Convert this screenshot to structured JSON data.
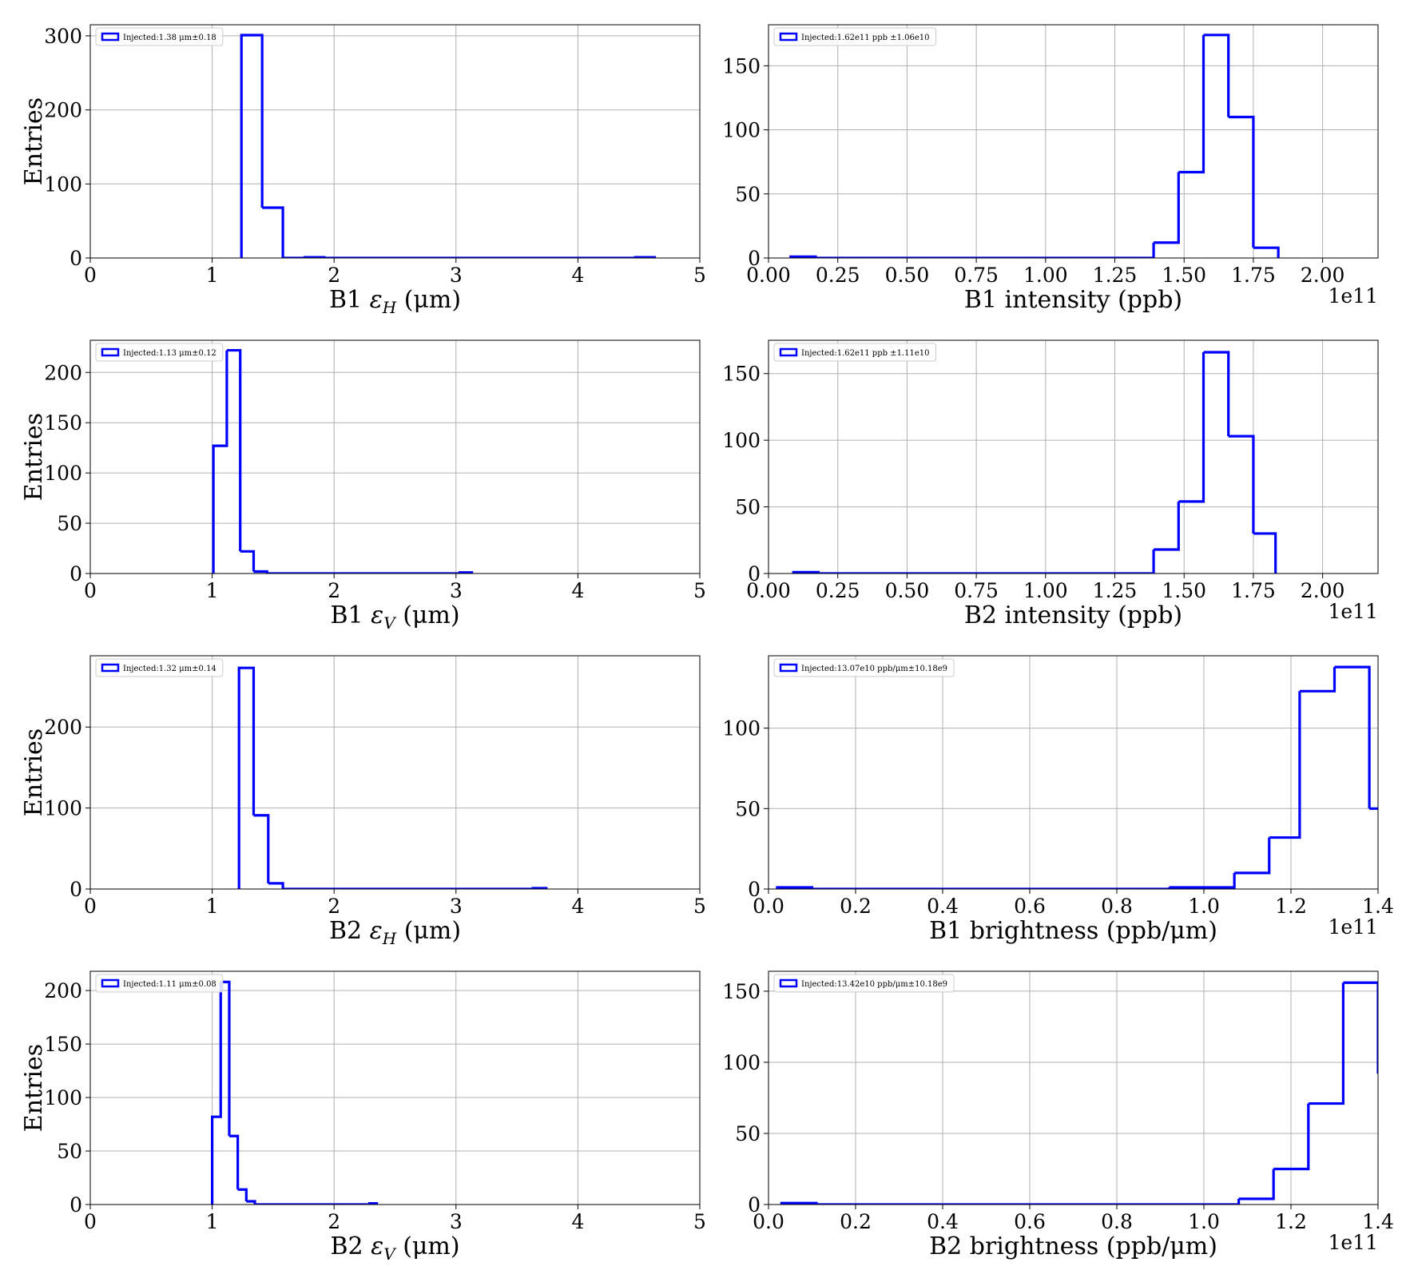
{
  "chart_data": [
    {
      "type": "histogram",
      "xlabel": "B1 εH (μm)",
      "xlabel_parts": {
        "pre": "B1 ",
        "sym": "ε",
        "sub": "H",
        "post": " (μm)"
      },
      "ylabel": "Entries",
      "xlim": [
        0,
        5
      ],
      "ylim": [
        0,
        315
      ],
      "xticks": [
        0,
        1,
        2,
        3,
        4,
        5
      ],
      "xtick_labels": [
        "0",
        "1",
        "2",
        "3",
        "4",
        "5"
      ],
      "yticks": [
        0,
        100,
        200,
        300
      ],
      "ytick_labels": [
        "0",
        "100",
        "200",
        "300"
      ],
      "offset_text": "",
      "legend": "Injected:1.38 μm±0.18",
      "legend_position": "upper left",
      "grid": true,
      "series_color": "#0000ff",
      "bins": [
        [
          1.24,
          1.41,
          301
        ],
        [
          1.41,
          1.58,
          68
        ],
        [
          1.58,
          1.75,
          0
        ],
        [
          1.75,
          1.92,
          1
        ],
        [
          1.92,
          4.46,
          0
        ],
        [
          4.46,
          4.63,
          1
        ]
      ]
    },
    {
      "type": "histogram",
      "xlabel": "B1 intensity (ppb)",
      "ylabel": "",
      "xlim": [
        0,
        2.2
      ],
      "ylim": [
        0,
        182
      ],
      "xticks": [
        0,
        0.25,
        0.5,
        0.75,
        1.0,
        1.25,
        1.5,
        1.75,
        2.0
      ],
      "xtick_labels": [
        "0.00",
        "0.25",
        "0.50",
        "0.75",
        "1.00",
        "1.25",
        "1.50",
        "1.75",
        "2.00"
      ],
      "yticks": [
        0,
        50,
        100,
        150
      ],
      "ytick_labels": [
        "0",
        "50",
        "100",
        "150"
      ],
      "offset_text": "1e11",
      "legend": "Injected:1.62e11 ppb ±1.06e10",
      "legend_position": "upper left",
      "grid": true,
      "series_color": "#0000ff",
      "bins": [
        [
          0.08,
          0.17,
          1
        ],
        [
          0.17,
          1.39,
          0
        ],
        [
          1.39,
          1.48,
          12
        ],
        [
          1.48,
          1.57,
          67
        ],
        [
          1.57,
          1.66,
          174
        ],
        [
          1.66,
          1.75,
          110
        ],
        [
          1.75,
          1.84,
          8
        ]
      ]
    },
    {
      "type": "histogram",
      "xlabel": "B1 εV (μm)",
      "xlabel_parts": {
        "pre": "B1 ",
        "sym": "ε",
        "sub": "V",
        "post": " (μm)"
      },
      "ylabel": "Entries",
      "xlim": [
        0,
        5
      ],
      "ylim": [
        0,
        232
      ],
      "xticks": [
        0,
        1,
        2,
        3,
        4,
        5
      ],
      "xtick_labels": [
        "0",
        "1",
        "2",
        "3",
        "4",
        "5"
      ],
      "yticks": [
        0,
        50,
        100,
        150,
        200
      ],
      "ytick_labels": [
        "0",
        "50",
        "100",
        "150",
        "200"
      ],
      "offset_text": "",
      "legend": "Injected:1.13 μm±0.12",
      "legend_position": "upper left",
      "grid": true,
      "series_color": "#0000ff",
      "bins": [
        [
          1.01,
          1.12,
          127
        ],
        [
          1.12,
          1.23,
          222
        ],
        [
          1.23,
          1.34,
          22
        ],
        [
          1.34,
          1.45,
          2
        ],
        [
          1.45,
          3.02,
          0
        ],
        [
          3.02,
          3.13,
          1
        ]
      ]
    },
    {
      "type": "histogram",
      "xlabel": "B2 intensity (ppb)",
      "ylabel": "",
      "xlim": [
        0,
        2.2
      ],
      "ylim": [
        0,
        175
      ],
      "xticks": [
        0,
        0.25,
        0.5,
        0.75,
        1.0,
        1.25,
        1.5,
        1.75,
        2.0
      ],
      "xtick_labels": [
        "0.00",
        "0.25",
        "0.50",
        "0.75",
        "1.00",
        "1.25",
        "1.50",
        "1.75",
        "2.00"
      ],
      "yticks": [
        0,
        50,
        100,
        150
      ],
      "ytick_labels": [
        "0",
        "50",
        "100",
        "150"
      ],
      "offset_text": "1e11",
      "legend": "Injected:1.62e11 ppb ±1.11e10",
      "legend_position": "upper left",
      "grid": true,
      "series_color": "#0000ff",
      "bins": [
        [
          0.09,
          0.18,
          1
        ],
        [
          0.18,
          1.39,
          0
        ],
        [
          1.39,
          1.48,
          18
        ],
        [
          1.48,
          1.57,
          54
        ],
        [
          1.57,
          1.66,
          166
        ],
        [
          1.66,
          1.75,
          103
        ],
        [
          1.75,
          1.83,
          30
        ]
      ]
    },
    {
      "type": "histogram",
      "xlabel": "B2 εH (μm)",
      "xlabel_parts": {
        "pre": "B2 ",
        "sym": "ε",
        "sub": "H",
        "post": " (μm)"
      },
      "ylabel": "Entries",
      "xlim": [
        0,
        5
      ],
      "ylim": [
        0,
        288
      ],
      "xticks": [
        0,
        1,
        2,
        3,
        4,
        5
      ],
      "xtick_labels": [
        "0",
        "1",
        "2",
        "3",
        "4",
        "5"
      ],
      "yticks": [
        0,
        100,
        200
      ],
      "ytick_labels": [
        "0",
        "100",
        "200"
      ],
      "offset_text": "",
      "legend": "Injected:1.32 μm±0.14",
      "legend_position": "upper left",
      "grid": true,
      "series_color": "#0000ff",
      "bins": [
        [
          1.22,
          1.34,
          273
        ],
        [
          1.34,
          1.46,
          91
        ],
        [
          1.46,
          1.58,
          7
        ],
        [
          1.58,
          3.62,
          0
        ],
        [
          3.62,
          3.74,
          1
        ]
      ]
    },
    {
      "type": "histogram",
      "xlabel": "B1 brightness (ppb/μm)",
      "ylabel": "",
      "xlim": [
        0,
        1.4
      ],
      "ylim": [
        0,
        145
      ],
      "xticks": [
        0,
        0.2,
        0.4,
        0.6,
        0.8,
        1.0,
        1.2,
        1.4
      ],
      "xtick_labels": [
        "0.0",
        "0.2",
        "0.4",
        "0.6",
        "0.8",
        "1.0",
        "1.2",
        "1.4"
      ],
      "yticks": [
        0,
        50,
        100
      ],
      "ytick_labels": [
        "0",
        "50",
        "100"
      ],
      "offset_text": "1e11",
      "legend": "Injected:13.07e10 ppb/μm±10.18e9",
      "legend_position": "upper left",
      "grid": true,
      "series_color": "#0000ff",
      "bins": [
        [
          0.02,
          0.1,
          1
        ],
        [
          0.1,
          0.92,
          0
        ],
        [
          0.92,
          1.07,
          1
        ],
        [
          1.07,
          1.15,
          10
        ],
        [
          1.15,
          1.22,
          32
        ],
        [
          1.22,
          1.3,
          123
        ],
        [
          1.3,
          1.38,
          138
        ],
        [
          1.38,
          1.46,
          50
        ]
      ]
    },
    {
      "type": "histogram",
      "xlabel": "B2 εV (μm)",
      "xlabel_parts": {
        "pre": "B2 ",
        "sym": "ε",
        "sub": "V",
        "post": " (μm)"
      },
      "ylabel": "Entries",
      "xlim": [
        0,
        5
      ],
      "ylim": [
        0,
        218
      ],
      "xticks": [
        0,
        1,
        2,
        3,
        4,
        5
      ],
      "xtick_labels": [
        "0",
        "1",
        "2",
        "3",
        "4",
        "5"
      ],
      "yticks": [
        0,
        50,
        100,
        150,
        200
      ],
      "ytick_labels": [
        "0",
        "50",
        "100",
        "150",
        "200"
      ],
      "offset_text": "",
      "legend": "Injected:1.11 μm±0.08",
      "legend_position": "upper left",
      "grid": true,
      "series_color": "#0000ff",
      "bins": [
        [
          1.0,
          1.07,
          82
        ],
        [
          1.07,
          1.14,
          208
        ],
        [
          1.14,
          1.21,
          64
        ],
        [
          1.21,
          1.28,
          14
        ],
        [
          1.28,
          1.35,
          3
        ],
        [
          1.35,
          2.28,
          0
        ],
        [
          2.28,
          2.35,
          1
        ]
      ]
    },
    {
      "type": "histogram",
      "xlabel": "B2 brightness (ppb/μm)",
      "ylabel": "",
      "xlim": [
        0,
        1.4
      ],
      "ylim": [
        0,
        164
      ],
      "xticks": [
        0,
        0.2,
        0.4,
        0.6,
        0.8,
        1.0,
        1.2,
        1.4
      ],
      "xtick_labels": [
        "0.0",
        "0.2",
        "0.4",
        "0.6",
        "0.8",
        "1.0",
        "1.2",
        "1.4"
      ],
      "yticks": [
        0,
        50,
        100,
        150
      ],
      "ytick_labels": [
        "0",
        "50",
        "100",
        "150"
      ],
      "offset_text": "1e11",
      "legend": "Injected:13.42e10 ppb/μm±10.18e9",
      "legend_position": "upper left",
      "grid": true,
      "series_color": "#0000ff",
      "bins": [
        [
          0.03,
          0.11,
          1
        ],
        [
          0.11,
          1.08,
          0
        ],
        [
          1.08,
          1.16,
          4
        ],
        [
          1.16,
          1.24,
          25
        ],
        [
          1.24,
          1.32,
          71
        ],
        [
          1.32,
          1.4,
          156
        ],
        [
          1.4,
          1.48,
          92
        ]
      ]
    }
  ]
}
